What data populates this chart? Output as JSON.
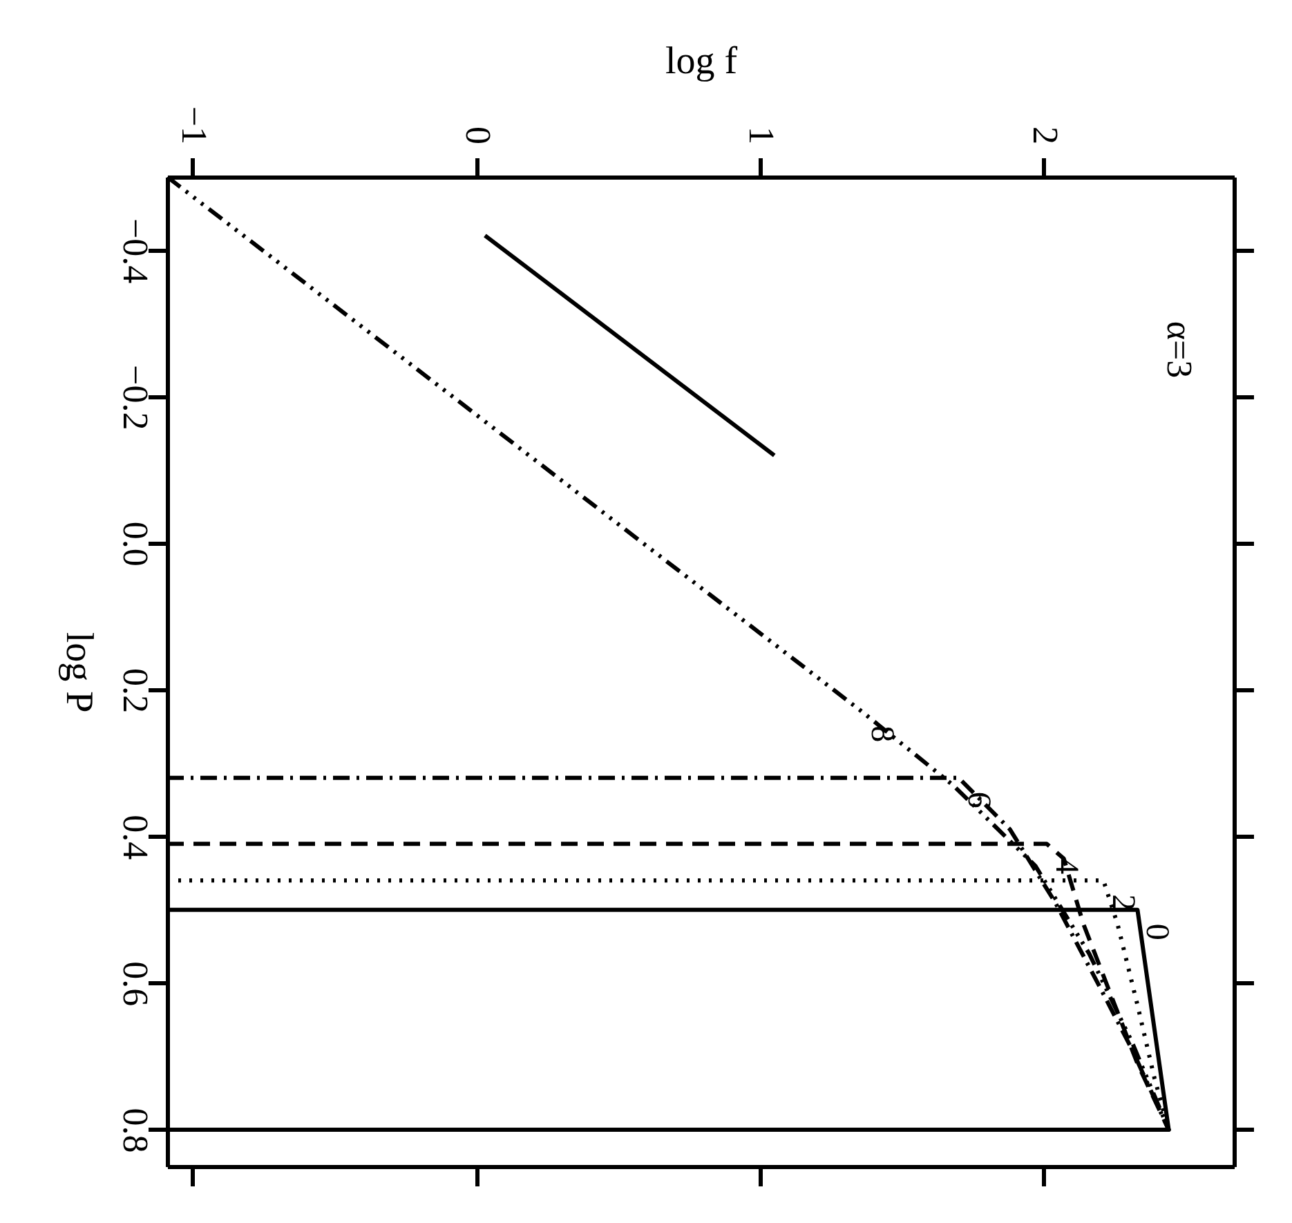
{
  "chart_data": {
    "type": "line",
    "xlabel": "log f",
    "ylabel": "log P",
    "xlim": [
      -1.09,
      2.67
    ],
    "ylim": [
      0.85,
      -0.5
    ],
    "xticks": [
      {
        "value": -1,
        "label": "−1"
      },
      {
        "value": 0,
        "label": "0"
      },
      {
        "value": 1,
        "label": "1"
      },
      {
        "value": 2,
        "label": "2"
      }
    ],
    "yticks": [
      {
        "value": -0.4,
        "label": "−0.4"
      },
      {
        "value": -0.2,
        "label": "−0.2"
      },
      {
        "value": 0.0,
        "label": "0.0"
      },
      {
        "value": 0.2,
        "label": "0.2"
      },
      {
        "value": 0.4,
        "label": "0.4"
      },
      {
        "value": 0.6,
        "label": "0.6"
      },
      {
        "value": 0.8,
        "label": "0.8"
      }
    ],
    "grid": false,
    "marker": "none",
    "series": [
      {
        "name": "0",
        "color": "#000000",
        "line_style": "solid",
        "x": [
          -1.09,
          2.33,
          2.44,
          -1.09
        ],
        "values": [
          0.5,
          0.5,
          0.8,
          0.8
        ]
      },
      {
        "name": "2",
        "color": "#000000",
        "line_style": "dotted",
        "x": [
          -1.09,
          2.21,
          2.26,
          2.33,
          2.39,
          2.44,
          -1.09
        ],
        "values": [
          0.46,
          0.46,
          0.52,
          0.63,
          0.73,
          0.8,
          0.8
        ]
      },
      {
        "name": "4",
        "color": "#000000",
        "line_style": "dashed",
        "x": [
          -1.09,
          2.01,
          2.07,
          2.14,
          2.24,
          2.33,
          2.44,
          -1.09
        ],
        "values": [
          0.41,
          0.41,
          0.43,
          0.52,
          0.62,
          0.71,
          0.8,
          0.8
        ]
      },
      {
        "name": "6",
        "color": "#000000",
        "line_style": "dashdot",
        "x": [
          -1.09,
          1.7,
          1.88,
          2.04,
          2.19,
          2.31,
          2.44,
          -1.09
        ],
        "values": [
          0.32,
          0.32,
          0.39,
          0.49,
          0.6,
          0.69,
          0.8,
          0.8
        ]
      },
      {
        "name": "8",
        "color": "#000000",
        "line_style": "dashdotdotdot",
        "x": [
          -1.09,
          1.36,
          1.68,
          1.97,
          2.16,
          2.31,
          2.44
        ],
        "values": [
          -0.5,
          0.23,
          0.33,
          0.44,
          0.56,
          0.68,
          0.8
        ]
      },
      {
        "color": "#000000",
        "line_style": "solid",
        "x": [
          0.03,
          1.05
        ],
        "values": [
          -0.42,
          -0.12
        ]
      }
    ],
    "annotations": [
      "α=3"
    ]
  }
}
